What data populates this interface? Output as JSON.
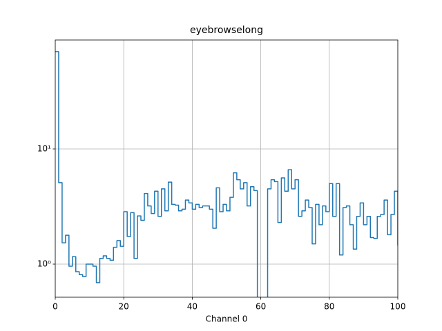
{
  "chart_data": {
    "type": "line",
    "title": "eyebrowselong",
    "xlabel": "Channel 0",
    "drawstyle": "steps-post",
    "color": "#1f77b4",
    "yscale": "log",
    "grid": true,
    "x": [
      0,
      1,
      2,
      3,
      4,
      5,
      6,
      7,
      8,
      9,
      10,
      11,
      12,
      13,
      14,
      15,
      16,
      17,
      18,
      19,
      20,
      21,
      22,
      23,
      24,
      25,
      26,
      27,
      28,
      29,
      30,
      31,
      32,
      33,
      34,
      35,
      36,
      37,
      38,
      39,
      40,
      41,
      42,
      43,
      44,
      45,
      46,
      47,
      48,
      49,
      50,
      51,
      52,
      53,
      54,
      55,
      56,
      57,
      58,
      59,
      60,
      61,
      62,
      63,
      64,
      65,
      66,
      67,
      68,
      69,
      70,
      71,
      72,
      73,
      74,
      75,
      76,
      77,
      78,
      79,
      80,
      81,
      82,
      83,
      84,
      85,
      86,
      87,
      88,
      89,
      90,
      91,
      92,
      93,
      94,
      95,
      96,
      97,
      98,
      99,
      100
    ],
    "values": [
      70,
      5.1,
      1.53,
      1.78,
      0.96,
      1.16,
      0.86,
      0.81,
      0.78,
      1.0,
      1.0,
      0.96,
      0.69,
      1.12,
      1.18,
      1.12,
      1.08,
      1.4,
      1.6,
      1.43,
      2.85,
      1.74,
      2.8,
      1.12,
      2.62,
      2.4,
      4.1,
      3.2,
      2.75,
      4.3,
      2.6,
      4.5,
      2.9,
      5.15,
      3.3,
      3.25,
      2.9,
      3.0,
      3.6,
      3.4,
      3.0,
      3.3,
      3.1,
      3.2,
      3.2,
      3.0,
      2.05,
      4.6,
      2.85,
      3.3,
      2.9,
      3.8,
      6.2,
      5.4,
      4.5,
      5.1,
      3.2,
      4.7,
      4.35,
      0,
      0,
      0,
      4.5,
      5.4,
      5.2,
      2.3,
      5.6,
      4.3,
      6.6,
      4.5,
      5.4,
      2.6,
      2.9,
      3.6,
      3.1,
      1.5,
      3.3,
      2.2,
      3.2,
      2.85,
      5.0,
      2.6,
      5.0,
      1.2,
      3.1,
      3.2,
      2.2,
      1.35,
      2.6,
      3.4,
      2.2,
      2.6,
      1.7,
      1.67,
      2.6,
      2.7,
      3.6,
      1.8,
      2.7,
      4.3,
      1.45
    ],
    "xlim": [
      0,
      100
    ],
    "xticks": [
      0,
      20,
      40,
      60,
      80,
      100
    ],
    "ylim": [
      0.516,
      88.3
    ],
    "yticks": [
      {
        "value": 1,
        "label": "10⁰"
      },
      {
        "value": 10,
        "label": "10¹"
      }
    ]
  }
}
